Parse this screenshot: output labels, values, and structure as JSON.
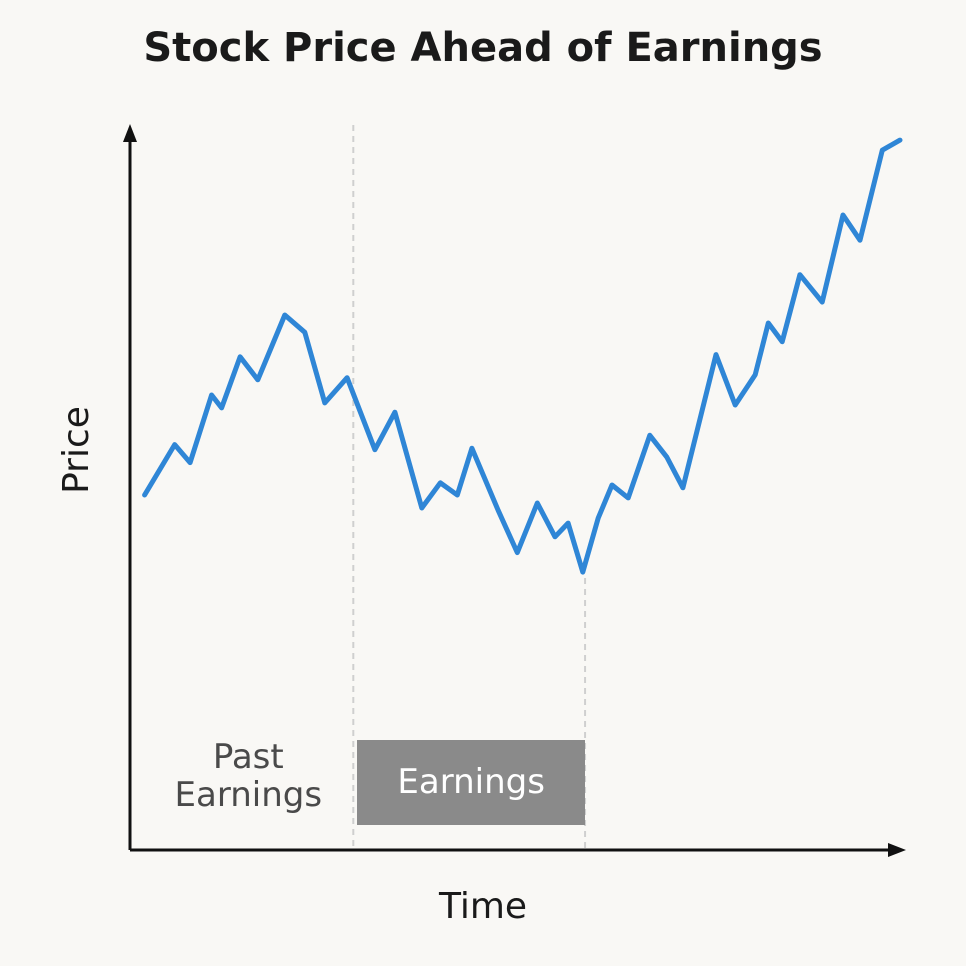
{
  "chart_data": {
    "type": "line",
    "title": "Stock Price Ahead of Earnings",
    "x_label": "Time",
    "y_label": "Price",
    "x": [
      1.9,
      5.8,
      7.8,
      10.6,
      11.9,
      14.3,
      16.6,
      20.1,
      22.7,
      25.3,
      28.2,
      31.8,
      34.4,
      37.9,
      40.3,
      42.5,
      44.4,
      47.8,
      50.3,
      52.9,
      55.2,
      56.9,
      58.8,
      60.8,
      62.6,
      64.7,
      67.5,
      69.7,
      71.8,
      76.1,
      78.6,
      81.2,
      82.9,
      84.7,
      87,
      89.9,
      92.6,
      94.8,
      97.7,
      100
    ],
    "values": [
      49.3,
      56.3,
      53.8,
      63.2,
      61.4,
      68.5,
      65.3,
      74.3,
      71.9,
      62.1,
      65.6,
      55.6,
      60.8,
      47.5,
      51,
      49.3,
      55.8,
      47.2,
      41.3,
      48.2,
      43.5,
      45.4,
      38.6,
      46.1,
      50.7,
      48.9,
      57.6,
      54.6,
      50.3,
      68.8,
      61.8,
      66,
      73.2,
      70.6,
      79.9,
      76.1,
      88.2,
      84.7,
      97.2,
      98.6
    ],
    "color": "#2f86d6",
    "xlim": [
      0,
      100
    ],
    "ylim": [
      0,
      100
    ],
    "events": [
      {
        "label": "Past Earnings",
        "x": 29
      },
      {
        "label": "Earnings",
        "x": 59.1
      }
    ]
  }
}
